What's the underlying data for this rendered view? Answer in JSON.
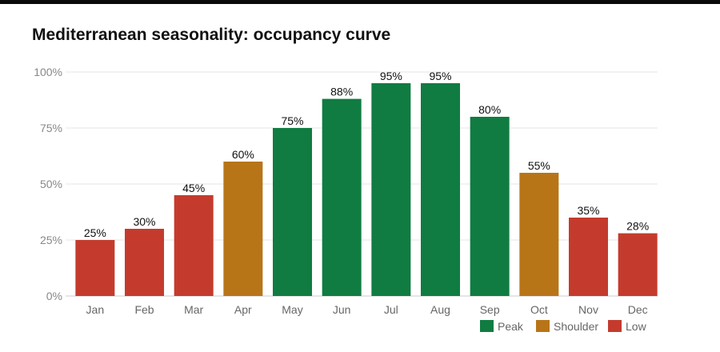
{
  "chart_data": {
    "type": "bar",
    "title": "Mediterranean seasonality: occupancy curve",
    "categories": [
      "Jan",
      "Feb",
      "Mar",
      "Apr",
      "May",
      "Jun",
      "Jul",
      "Aug",
      "Sep",
      "Oct",
      "Nov",
      "Dec"
    ],
    "values": [
      25,
      30,
      45,
      60,
      75,
      88,
      95,
      95,
      80,
      55,
      35,
      28
    ],
    "season": [
      "Low",
      "Low",
      "Low",
      "Shoulder",
      "Peak",
      "Peak",
      "Peak",
      "Peak",
      "Peak",
      "Shoulder",
      "Low",
      "Low"
    ],
    "ylim": [
      0,
      100
    ],
    "yticks": [
      0,
      25,
      50,
      75,
      100
    ],
    "ytick_format": "%",
    "grid": true,
    "legend_position": "bottom-right",
    "legend": [
      {
        "name": "Peak",
        "color": "#107c41"
      },
      {
        "name": "Shoulder",
        "color": "#b87518"
      },
      {
        "name": "Low",
        "color": "#c43b2d"
      }
    ]
  }
}
